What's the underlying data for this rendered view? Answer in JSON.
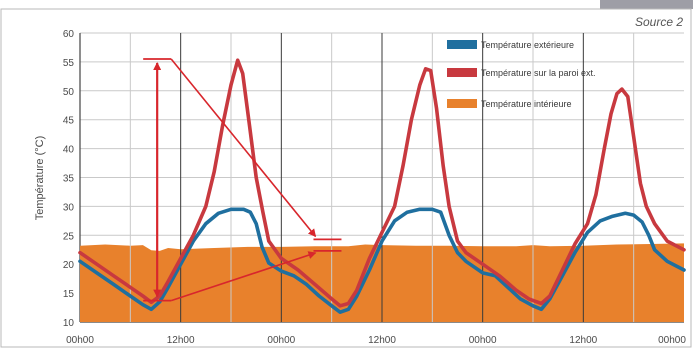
{
  "chart_data": {
    "type": "line",
    "source": "Source 2",
    "ylabel": "Température (°C)",
    "ylim": [
      10,
      60
    ],
    "yticks": [
      "10",
      "15",
      "20",
      "25",
      "30",
      "35",
      "40",
      "45",
      "50",
      "55",
      "60"
    ],
    "xlim": [
      0,
      72
    ],
    "xticks": [
      {
        "x": 0,
        "label": "00h00"
      },
      {
        "x": 12,
        "label": "12h00"
      },
      {
        "x": 24,
        "label": "00h00"
      },
      {
        "x": 36,
        "label": "12h00"
      },
      {
        "x": 48,
        "label": "00h00"
      },
      {
        "x": 60,
        "label": "12h00"
      },
      {
        "x": 72,
        "label": "00h00"
      }
    ],
    "grid": true,
    "legend_position": "top-right",
    "series": [
      {
        "name": "Température extérieure",
        "color": "#1f6f9f",
        "style": "line",
        "points": [
          [
            0,
            20.5
          ],
          [
            2,
            18.5
          ],
          [
            4,
            16.5
          ],
          [
            6,
            14.5
          ],
          [
            7.5,
            13
          ],
          [
            8.5,
            12.2
          ],
          [
            9.5,
            13.5
          ],
          [
            10.5,
            16
          ],
          [
            12,
            20
          ],
          [
            13.5,
            24
          ],
          [
            15,
            27
          ],
          [
            16.5,
            28.8
          ],
          [
            18,
            29.5
          ],
          [
            19.5,
            29.5
          ],
          [
            20.3,
            29
          ],
          [
            21,
            27
          ],
          [
            21.7,
            23
          ],
          [
            22.5,
            20.2
          ],
          [
            24,
            18.8
          ],
          [
            25.5,
            18
          ],
          [
            27,
            16.5
          ],
          [
            28.5,
            14.5
          ],
          [
            30,
            12.8
          ],
          [
            31,
            11.7
          ],
          [
            32,
            12.2
          ],
          [
            33,
            14.5
          ],
          [
            34.5,
            19
          ],
          [
            36,
            24
          ],
          [
            37.5,
            27.5
          ],
          [
            39,
            29
          ],
          [
            40.5,
            29.5
          ],
          [
            42,
            29.5
          ],
          [
            43,
            29
          ],
          [
            44,
            25
          ],
          [
            45,
            22
          ],
          [
            46,
            20.5
          ],
          [
            48,
            18.5
          ],
          [
            49.5,
            18
          ],
          [
            51,
            16
          ],
          [
            52.5,
            14
          ],
          [
            54,
            12.8
          ],
          [
            55,
            12.2
          ],
          [
            56,
            14
          ],
          [
            57.5,
            18
          ],
          [
            59,
            22
          ],
          [
            60.5,
            25.5
          ],
          [
            62,
            27.5
          ],
          [
            63.5,
            28.3
          ],
          [
            65,
            28.8
          ],
          [
            66,
            28.5
          ],
          [
            67,
            27.3
          ],
          [
            67.8,
            25
          ],
          [
            68.5,
            22.5
          ],
          [
            70,
            20.5
          ],
          [
            72,
            19
          ]
        ]
      },
      {
        "name": "Température sur la paroi ext.",
        "color": "#c8393f",
        "style": "line",
        "points": [
          [
            0,
            22
          ],
          [
            2,
            20
          ],
          [
            4,
            18
          ],
          [
            6,
            16
          ],
          [
            7.5,
            14.5
          ],
          [
            8.5,
            13.4
          ],
          [
            9.5,
            14.5
          ],
          [
            10.5,
            17
          ],
          [
            12,
            21
          ],
          [
            13.5,
            25
          ],
          [
            15,
            30
          ],
          [
            16,
            36
          ],
          [
            17,
            44
          ],
          [
            18,
            51
          ],
          [
            18.8,
            55.3
          ],
          [
            19.4,
            53
          ],
          [
            20.2,
            44
          ],
          [
            21,
            35
          ],
          [
            21.8,
            29
          ],
          [
            22.5,
            24
          ],
          [
            24,
            21
          ],
          [
            26,
            19
          ],
          [
            28,
            16.5
          ],
          [
            30,
            14
          ],
          [
            31,
            12.8
          ],
          [
            32,
            13.2
          ],
          [
            33,
            15.5
          ],
          [
            34.5,
            21
          ],
          [
            36,
            25.5
          ],
          [
            37.5,
            30
          ],
          [
            38.5,
            37
          ],
          [
            39.5,
            45
          ],
          [
            40.5,
            51
          ],
          [
            41.2,
            53.8
          ],
          [
            41.8,
            53.5
          ],
          [
            42.5,
            47
          ],
          [
            43.3,
            37
          ],
          [
            44,
            30
          ],
          [
            45,
            24
          ],
          [
            46,
            22
          ],
          [
            48,
            20
          ],
          [
            50,
            18
          ],
          [
            52,
            15.5
          ],
          [
            53.5,
            14
          ],
          [
            55,
            13.2
          ],
          [
            56,
            14.5
          ],
          [
            57.5,
            19
          ],
          [
            59,
            23.5
          ],
          [
            60.5,
            27
          ],
          [
            61.5,
            32
          ],
          [
            62.5,
            40
          ],
          [
            63.3,
            46
          ],
          [
            64,
            49.5
          ],
          [
            64.6,
            50.3
          ],
          [
            65.3,
            49
          ],
          [
            66,
            42
          ],
          [
            66.8,
            34
          ],
          [
            67.5,
            30
          ],
          [
            68.5,
            27
          ],
          [
            70,
            24
          ],
          [
            72,
            22.5
          ]
        ]
      },
      {
        "name": "Température intérieure",
        "color": "#e8812c",
        "style": "area",
        "points": [
          [
            0,
            23.2
          ],
          [
            3,
            23.4
          ],
          [
            6,
            23.2
          ],
          [
            7.5,
            23.3
          ],
          [
            8.5,
            22.4
          ],
          [
            9.5,
            22.3
          ],
          [
            10.5,
            22.8
          ],
          [
            12,
            22.6
          ],
          [
            16,
            22.8
          ],
          [
            20,
            23
          ],
          [
            24,
            23
          ],
          [
            28,
            23.1
          ],
          [
            32,
            23.1
          ],
          [
            34,
            23.4
          ],
          [
            36,
            23.3
          ],
          [
            40,
            23.2
          ],
          [
            44,
            23.2
          ],
          [
            48,
            23.1
          ],
          [
            52,
            23.1
          ],
          [
            54,
            23.3
          ],
          [
            56,
            23.1
          ],
          [
            60,
            23.2
          ],
          [
            64,
            23.4
          ],
          [
            68,
            23.5
          ],
          [
            72,
            23.6
          ]
        ]
      }
    ]
  }
}
